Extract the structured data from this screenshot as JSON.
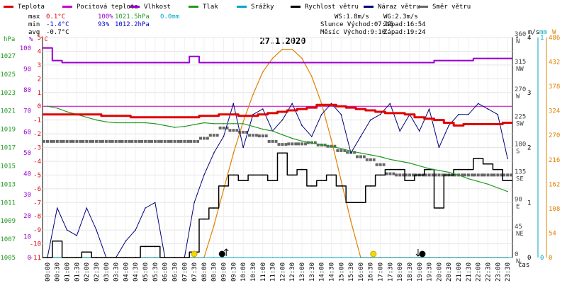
{
  "legend": [
    {
      "label": "Teplota",
      "color": "#e00000"
    },
    {
      "label": "Pocitová teplota",
      "color": "#cc00cc"
    },
    {
      "label": "Vlhkost",
      "color": "#9900cc"
    },
    {
      "label": "Tlak",
      "color": "#229922"
    },
    {
      "label": "Srážky",
      "color": "#00a6c8"
    },
    {
      "label": "Rychlost větru",
      "color": "#000000"
    },
    {
      "label": "Náraz větru",
      "color": "#00007a"
    },
    {
      "label": "Směr větru",
      "color": "#666666"
    }
  ],
  "stats": {
    "max": {
      "label": "max",
      "temp": "0.1°C",
      "hum": "100%",
      "press": "1021.5hPa",
      "rain": "0.0mm"
    },
    "min": {
      "label": "min",
      "temp": "-1.4°C",
      "hum": "93%",
      "press": "1012.2hPa"
    },
    "avg": {
      "label": "avg",
      "temp": "-0.7°C"
    }
  },
  "wind_info": {
    "ws": "WS:1.8m/s",
    "wg": "WG:2.3m/s"
  },
  "sun_info": {
    "rise": "Slunce Východ:07:45",
    "set": "Západ:16:54"
  },
  "moon_info": {
    "rise": "Měsíc  Východ:9:10",
    "set": "Západ:19:24"
  },
  "date_title": "27.1.2020",
  "axis_units": {
    "hpa": "hPa",
    "pct": "%",
    "degc": "°C",
    "deg": "°",
    "ms": "m/s",
    "mm": "mm",
    "w": "W",
    "time": "čas"
  },
  "chart_data": {
    "type": "line",
    "title": "27.1.2020",
    "x_labels": [
      "00:00",
      "00:30",
      "01:00",
      "01:30",
      "02:00",
      "02:30",
      "03:00",
      "03:30",
      "04:00",
      "04:30",
      "05:00",
      "05:30",
      "06:00",
      "06:30",
      "07:00",
      "07:30",
      "08:00",
      "08:30",
      "09:00",
      "09:30",
      "10:00",
      "10:30",
      "11:00",
      "11:30",
      "12:00",
      "12:30",
      "13:00",
      "13:30",
      "14:00",
      "14:30",
      "15:00",
      "15:30",
      "16:00",
      "16:30",
      "17:00",
      "17:30",
      "18:00",
      "18:30",
      "19:00",
      "19:30",
      "20:00",
      "20:30",
      "21:00",
      "21:30",
      "22:00",
      "22:30",
      "23:00",
      "23:30"
    ],
    "y_axes": {
      "hpa": [
        "1005",
        "1007",
        "1009",
        "1011",
        "1013",
        "1015",
        "1017",
        "1019",
        "1021",
        "1023",
        "1025",
        "1027"
      ],
      "pct": [
        "0",
        "10",
        "20",
        "30",
        "40",
        "50",
        "60",
        "70",
        "80",
        "90",
        "100"
      ],
      "degc": [
        "-11",
        "-10",
        "-9",
        "-8",
        "-7",
        "-6",
        "-5",
        "-4",
        "-3",
        "-2",
        "-1",
        "0",
        "1",
        "2",
        "3",
        "4",
        "5"
      ],
      "wind_dir_deg": [
        "0",
        "45",
        "90",
        "135",
        "180",
        "225",
        "270",
        "315",
        "360"
      ],
      "wind_dir_labels": [
        "N",
        "NE",
        "E",
        "SE",
        "S",
        "SW",
        "W",
        "NW",
        "N"
      ],
      "ms": [
        "0",
        "1",
        "2",
        "3",
        "4"
      ],
      "mm": [
        "0",
        "1"
      ],
      "w": [
        "0",
        "54",
        "108",
        "162",
        "216",
        "270",
        "324",
        "378",
        "432",
        "486"
      ]
    },
    "ranges": {
      "temp_c": [
        -11,
        5
      ],
      "humidity_pct": [
        0,
        105
      ],
      "pressure_hpa": [
        1005,
        1029
      ],
      "wind_ms": [
        0,
        4
      ],
      "wind_dir_deg": [
        0,
        360
      ],
      "solar_w": [
        0,
        486
      ]
    },
    "series": [
      {
        "name": "Teplota",
        "unit": "°C",
        "values": [
          -0.6,
          -0.6,
          -0.6,
          -0.6,
          -0.6,
          -0.6,
          -0.7,
          -0.7,
          -0.7,
          -0.8,
          -0.8,
          -0.8,
          -0.8,
          -0.8,
          -0.8,
          -0.8,
          -0.7,
          -0.7,
          -0.6,
          -0.6,
          -0.7,
          -0.7,
          -0.6,
          -0.5,
          -0.4,
          -0.3,
          -0.2,
          -0.1,
          0.1,
          0.1,
          0.0,
          -0.1,
          -0.2,
          -0.3,
          -0.4,
          -0.5,
          -0.5,
          -0.6,
          -0.8,
          -0.9,
          -1.0,
          -1.2,
          -1.4,
          -1.3,
          -1.3,
          -1.3,
          -1.3,
          -1.2
        ]
      },
      {
        "name": "Vlhkost",
        "unit": "%",
        "values": [
          100,
          94,
          93,
          93,
          93,
          93,
          93,
          93,
          93,
          93,
          93,
          93,
          93,
          93,
          93,
          96,
          93,
          93,
          93,
          93,
          93,
          93,
          93,
          93,
          93,
          93,
          93,
          93,
          93,
          93,
          93,
          93,
          93,
          93,
          93,
          93,
          93,
          93,
          93,
          93,
          94,
          94,
          94,
          94,
          95,
          95,
          95,
          95
        ]
      },
      {
        "name": "Tlak",
        "unit": "hPa",
        "values": [
          1021.5,
          1021.3,
          1020.9,
          1020.6,
          1020.3,
          1020.0,
          1019.8,
          1019.7,
          1019.7,
          1019.7,
          1019.7,
          1019.6,
          1019.4,
          1019.2,
          1019.3,
          1019.5,
          1019.7,
          1019.6,
          1019.6,
          1019.6,
          1019.6,
          1019.3,
          1019.0,
          1018.8,
          1018.4,
          1018.0,
          1017.7,
          1017.5,
          1017.3,
          1017.1,
          1016.9,
          1016.6,
          1016.4,
          1016.2,
          1016.0,
          1015.7,
          1015.5,
          1015.3,
          1015.0,
          1014.7,
          1014.5,
          1014.3,
          1014.0,
          1013.6,
          1013.3,
          1013.0,
          1012.6,
          1012.2
        ]
      },
      {
        "name": "Směr větru",
        "unit": "°",
        "values": [
          190,
          190,
          190,
          190,
          190,
          190,
          190,
          190,
          190,
          190,
          190,
          190,
          190,
          190,
          190,
          190,
          195,
          200,
          212,
          208,
          205,
          200,
          199,
          190,
          185,
          186,
          186,
          188,
          184,
          182,
          175,
          172,
          165,
          160,
          152,
          137,
          135,
          135,
          135,
          135,
          135,
          135,
          135,
          135,
          135,
          135,
          135,
          135
        ]
      },
      {
        "name": "Rychlost větru",
        "unit": "m/s",
        "values": [
          0,
          0.3,
          0,
          0,
          0.1,
          0,
          0,
          0,
          0,
          0,
          0.2,
          0.2,
          0,
          0,
          0,
          0.1,
          0.7,
          0.9,
          1.3,
          1.5,
          1.4,
          1.5,
          1.5,
          1.4,
          1.9,
          1.5,
          1.6,
          1.3,
          1.4,
          1.5,
          1.3,
          1.0,
          1.0,
          1.3,
          1.5,
          1.6,
          1.6,
          1.4,
          1.5,
          1.6,
          0.9,
          1.5,
          1.6,
          1.6,
          1.8,
          1.7,
          1.6,
          1.4
        ]
      },
      {
        "name": "Náraz větru",
        "unit": "m/s",
        "values": [
          0,
          0.9,
          0.5,
          0.4,
          0.9,
          0.5,
          0,
          0,
          0.3,
          0.5,
          0.9,
          1.0,
          0,
          0,
          0,
          1.0,
          1.5,
          1.9,
          2.2,
          2.8,
          2.0,
          2.6,
          2.7,
          2.3,
          2.5,
          2.8,
          2.4,
          2.2,
          2.6,
          2.8,
          2.6,
          1.9,
          2.2,
          2.5,
          2.6,
          2.8,
          2.3,
          2.6,
          2.3,
          2.7,
          2.0,
          2.4,
          2.6,
          2.6,
          2.8,
          2.7,
          2.6,
          1.8
        ]
      },
      {
        "name": "Srážky",
        "unit": "mm",
        "values": [
          0,
          0,
          0,
          0,
          0,
          0,
          0,
          0,
          0,
          0,
          0,
          0,
          0,
          0,
          0,
          0,
          0,
          0,
          0,
          0,
          0,
          0,
          0,
          0,
          0,
          0,
          0,
          0,
          0,
          0,
          0,
          0,
          0,
          0,
          0,
          0,
          0,
          0,
          0,
          0,
          0,
          0,
          0,
          0,
          0,
          0,
          0,
          0
        ]
      },
      {
        "name": "Slunce",
        "unit": "W",
        "values": [
          0,
          0,
          0,
          0,
          0,
          0,
          0,
          0,
          0,
          0,
          0,
          0,
          0,
          0,
          0,
          0,
          0,
          70,
          150,
          230,
          300,
          360,
          410,
          440,
          460,
          460,
          440,
          400,
          340,
          260,
          170,
          80,
          0,
          0,
          0,
          0,
          0,
          0,
          0,
          0,
          0,
          0,
          0,
          0,
          0,
          0,
          0,
          0
        ]
      }
    ],
    "markers": [
      {
        "type": "sunrise",
        "time": "07:45"
      },
      {
        "type": "sunset",
        "time": "16:54"
      },
      {
        "type": "moonrise",
        "time": "9:10"
      },
      {
        "type": "moonset",
        "time": "19:24"
      }
    ]
  }
}
